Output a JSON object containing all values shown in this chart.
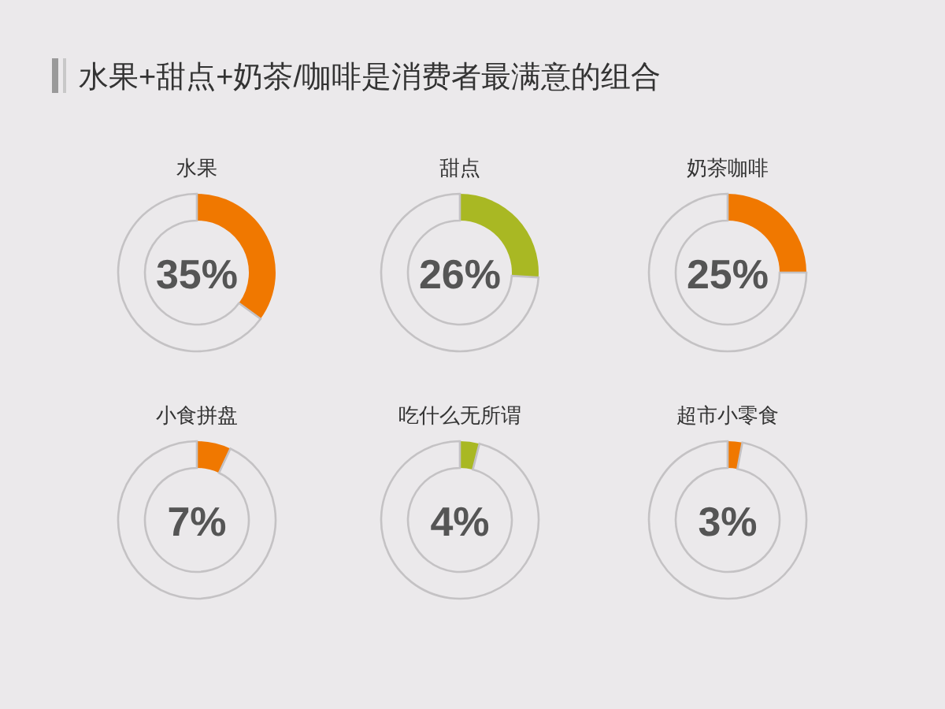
{
  "chart_data": [
    {
      "type": "other",
      "title": "水果+甜点+奶茶/咖啡是消费者最满意的组合"
    },
    {
      "type": "donut",
      "title": "水果",
      "categories": [
        null,
        null
      ],
      "values": [
        35,
        65
      ],
      "colors": [
        "#f07800",
        "#ebe9eb"
      ],
      "annotations": [
        "35%"
      ]
    },
    {
      "type": "donut",
      "title": "甜点",
      "categories": [
        null,
        null
      ],
      "values": [
        26,
        74
      ],
      "colors": [
        "#a9b823",
        "#ebe9eb"
      ],
      "annotations": [
        "26%"
      ]
    },
    {
      "type": "donut",
      "title": "奶茶咖啡",
      "categories": [
        null,
        null
      ],
      "values": [
        25,
        75
      ],
      "colors": [
        "#f07800",
        "#ebe9eb"
      ],
      "annotations": [
        "25%"
      ]
    },
    {
      "type": "donut",
      "title": "小食拼盘",
      "categories": [
        null,
        null
      ],
      "values": [
        7,
        93
      ],
      "colors": [
        "#f07800",
        "#ebe9eb"
      ],
      "annotations": [
        "7%"
      ]
    },
    {
      "type": "donut",
      "title": "吃什么无所谓",
      "categories": [
        null,
        null
      ],
      "values": [
        4,
        96
      ],
      "colors": [
        "#a9b823",
        "#ebe9eb"
      ],
      "annotations": [
        "4%"
      ]
    },
    {
      "type": "donut",
      "title": "超市小零食",
      "categories": [
        null,
        null
      ],
      "values": [
        3,
        97
      ],
      "colors": [
        "#f07800",
        "#ebe9eb"
      ],
      "annotations": [
        "3%"
      ]
    }
  ]
}
